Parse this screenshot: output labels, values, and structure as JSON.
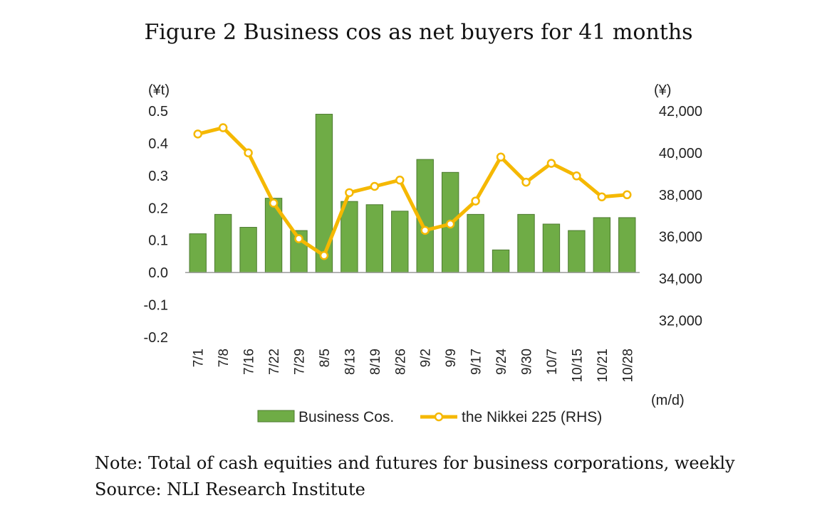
{
  "title": "Figure 2 Business cos as net buyers for 41 months",
  "chart_data": {
    "type": "bar+line",
    "categories": [
      "7/1",
      "7/8",
      "7/16",
      "7/22",
      "7/29",
      "8/5",
      "8/13",
      "8/19",
      "8/26",
      "9/2",
      "9/9",
      "9/17",
      "9/24",
      "9/30",
      "10/7",
      "10/15",
      "10/21",
      "10/28"
    ],
    "series": [
      {
        "name": "Business Cos.",
        "type": "bar",
        "axis": "left",
        "color": "#6fac46",
        "values": [
          0.12,
          0.18,
          0.14,
          0.23,
          0.13,
          0.49,
          0.22,
          0.21,
          0.19,
          0.35,
          0.31,
          0.18,
          0.07,
          0.18,
          0.15,
          0.13,
          0.17,
          0.17
        ]
      },
      {
        "name": "the Nikkei 225 (RHS)",
        "type": "line",
        "axis": "right",
        "color": "#f5b800",
        "values": [
          40900,
          41200,
          40000,
          37600,
          35900,
          35100,
          38100,
          38400,
          38700,
          36300,
          36600,
          37700,
          39800,
          38600,
          39500,
          38900,
          37900,
          38000
        ]
      }
    ],
    "left_axis": {
      "unit_label": "(¥t)",
      "ylim": [
        -0.2,
        0.5
      ],
      "ticks": [
        "0.5",
        "0.4",
        "0.3",
        "0.2",
        "0.1",
        "0.0",
        "-0.1",
        "-0.2"
      ]
    },
    "right_axis": {
      "unit_label": "(¥)",
      "ylim": [
        31200,
        42000
      ],
      "ticks": [
        "42,000",
        "40,000",
        "38,000",
        "36,000",
        "34,000",
        "32,000"
      ]
    },
    "x_unit_label": "(m/d)",
    "legend_position": "bottom",
    "grid": false
  },
  "notes": {
    "note": "Note: Total of cash equities and futures for business corporations, weekly",
    "source": "Source: NLI Research Institute"
  }
}
